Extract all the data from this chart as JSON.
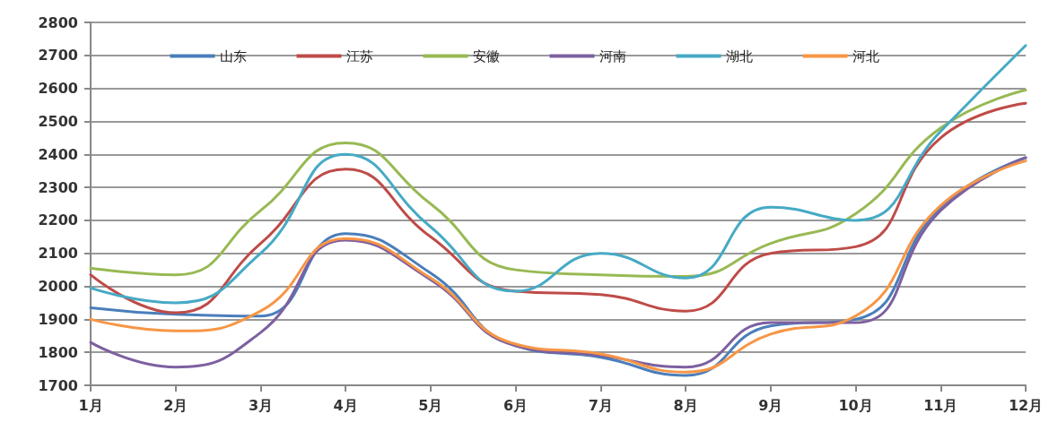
{
  "chart_data": {
    "type": "line",
    "categories": [
      "1月",
      "2月",
      "3月",
      "4月",
      "5月",
      "6月",
      "7月",
      "8月",
      "9月",
      "10月",
      "11月",
      "12月"
    ],
    "series": [
      {
        "name": "山东",
        "color": "#4a7ebb",
        "values": [
          1935,
          1915,
          1910,
          2160,
          2040,
          1820,
          1785,
          1730,
          1880,
          1900,
          2240,
          2390
        ]
      },
      {
        "name": "江苏",
        "color": "#be4b48",
        "values": [
          2035,
          1920,
          2130,
          2355,
          2150,
          1985,
          1975,
          1925,
          2100,
          2120,
          2450,
          2555
        ]
      },
      {
        "name": "安徽",
        "color": "#98b954",
        "values": [
          2055,
          2035,
          2230,
          2435,
          2250,
          2050,
          2035,
          2030,
          2130,
          2220,
          2480,
          2595
        ]
      },
      {
        "name": "河南",
        "color": "#7d60a0",
        "values": [
          1830,
          1755,
          1860,
          2140,
          2020,
          1820,
          1790,
          1755,
          1890,
          1890,
          2230,
          2390
        ]
      },
      {
        "name": "湖北",
        "color": "#46aac5",
        "values": [
          1995,
          1950,
          2100,
          2400,
          2180,
          1985,
          2100,
          2025,
          2240,
          2200,
          2470,
          2730
        ]
      },
      {
        "name": "河北",
        "color": "#f79646",
        "values": [
          1900,
          1865,
          1925,
          2145,
          2025,
          1825,
          1795,
          1740,
          1855,
          1910,
          2245,
          2380
        ]
      }
    ],
    "ylim": [
      1700,
      2800
    ],
    "yticks": [
      1700,
      1800,
      1900,
      2000,
      2100,
      2200,
      2300,
      2400,
      2500,
      2600,
      2700,
      2800
    ],
    "grid": "y",
    "legend": "top",
    "marker": "none"
  }
}
